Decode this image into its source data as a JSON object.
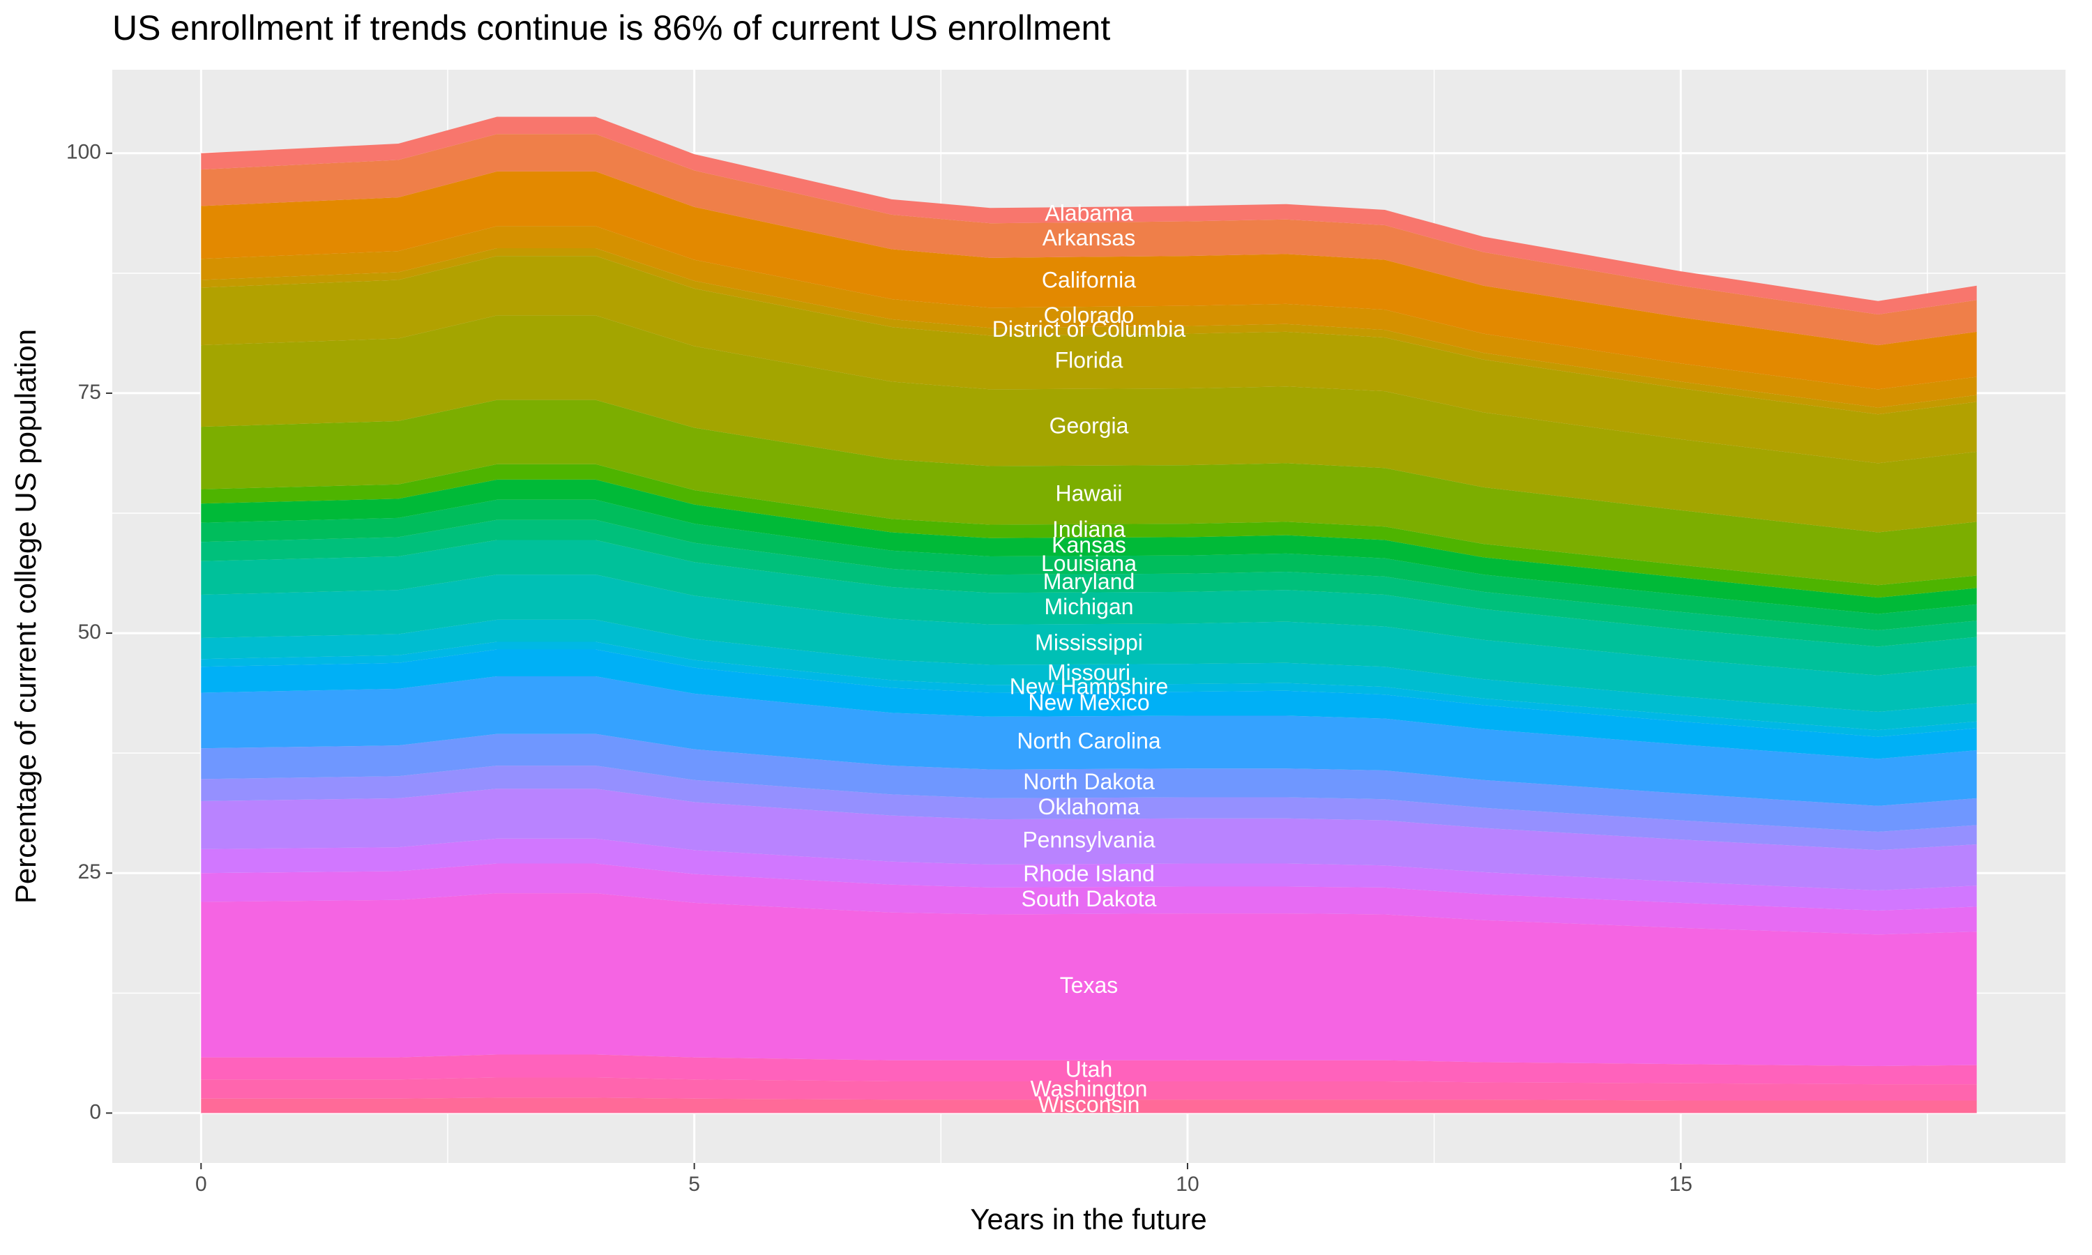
{
  "chart_data": {
    "type": "stacked_area",
    "title": "US enrollment if trends continue is 86% of current US enrollment",
    "x_label": "Years in the future",
    "y_label": "Percentage of current college US population",
    "x": [
      0,
      2,
      3,
      4,
      5,
      7,
      8,
      10,
      11,
      12,
      13,
      15,
      17,
      18
    ],
    "xlim": [
      -0.9,
      18.9
    ],
    "xticks": [
      0,
      5,
      10,
      15
    ],
    "ylim": [
      -5.2,
      108.7
    ],
    "yticks": [
      0,
      25,
      50,
      75,
      100
    ],
    "grid": true,
    "minor_grid": true,
    "series": [
      {
        "name": "Alabama",
        "color": "#F8766D",
        "values": [
          1.7,
          1.7,
          1.8,
          1.8,
          1.7,
          1.6,
          1.6,
          1.6,
          1.6,
          1.6,
          1.6,
          1.5,
          1.4,
          1.5
        ]
      },
      {
        "name": "Arkansas",
        "color": "#EF7F49",
        "values": [
          3.8,
          3.9,
          3.9,
          3.9,
          3.8,
          3.6,
          3.6,
          3.6,
          3.6,
          3.6,
          3.5,
          3.3,
          3.2,
          3.3
        ]
      },
      {
        "name": "California",
        "color": "#E38900",
        "values": [
          5.5,
          5.6,
          5.7,
          5.7,
          5.5,
          5.2,
          5.2,
          5.2,
          5.2,
          5.2,
          5.0,
          4.8,
          4.6,
          4.7
        ]
      },
      {
        "name": "Colorado",
        "color": "#D59100",
        "values": [
          2.2,
          2.2,
          2.3,
          2.3,
          2.2,
          2.1,
          2.1,
          2.1,
          2.1,
          2.1,
          2.0,
          1.9,
          1.9,
          1.9
        ]
      },
      {
        "name": "District of Columbia",
        "color": "#C49A00",
        "values": [
          0.8,
          0.8,
          0.8,
          0.8,
          0.8,
          0.8,
          0.8,
          0.8,
          0.8,
          0.8,
          0.7,
          0.7,
          0.7,
          0.7
        ]
      },
      {
        "name": "Florida",
        "color": "#B2A100",
        "values": [
          6.0,
          6.1,
          6.2,
          6.2,
          6.0,
          5.7,
          5.6,
          5.7,
          5.7,
          5.6,
          5.5,
          5.3,
          5.1,
          5.2
        ]
      },
      {
        "name": "Georgia",
        "color": "#A3A500",
        "values": [
          8.5,
          8.6,
          8.8,
          8.8,
          8.5,
          8.1,
          8.0,
          8.0,
          8.0,
          8.0,
          7.8,
          7.4,
          7.2,
          7.3
        ]
      },
      {
        "name": "Hawaii",
        "color": "#7CAE00",
        "values": [
          6.5,
          6.6,
          6.7,
          6.7,
          6.5,
          6.2,
          6.1,
          6.1,
          6.1,
          6.1,
          5.9,
          5.7,
          5.5,
          5.6
        ]
      },
      {
        "name": "Indiana",
        "color": "#4EB400",
        "values": [
          1.5,
          1.5,
          1.6,
          1.6,
          1.5,
          1.4,
          1.4,
          1.4,
          1.4,
          1.4,
          1.4,
          1.3,
          1.3,
          1.3
        ]
      },
      {
        "name": "Kansas",
        "color": "#00BA38",
        "values": [
          2.0,
          2.0,
          2.1,
          2.1,
          2.0,
          1.9,
          1.9,
          1.9,
          1.9,
          1.9,
          1.8,
          1.8,
          1.7,
          1.7
        ]
      },
      {
        "name": "Louisiana",
        "color": "#00BD5C",
        "values": [
          2.0,
          2.0,
          2.1,
          2.1,
          2.0,
          1.9,
          1.9,
          1.9,
          1.9,
          1.9,
          1.8,
          1.8,
          1.7,
          1.7
        ]
      },
      {
        "name": "Maryland",
        "color": "#00C07B",
        "values": [
          2.0,
          2.0,
          2.1,
          2.1,
          2.0,
          1.9,
          1.9,
          1.9,
          1.9,
          1.9,
          1.8,
          1.8,
          1.7,
          1.7
        ]
      },
      {
        "name": "Michigan",
        "color": "#00C19A",
        "values": [
          3.5,
          3.5,
          3.6,
          3.6,
          3.5,
          3.3,
          3.3,
          3.3,
          3.3,
          3.3,
          3.2,
          3.1,
          3.0,
          3.0
        ]
      },
      {
        "name": "Mississippi",
        "color": "#00C0B5",
        "values": [
          4.5,
          4.6,
          4.7,
          4.7,
          4.5,
          4.3,
          4.2,
          4.2,
          4.3,
          4.2,
          4.1,
          3.9,
          3.8,
          3.9
        ]
      },
      {
        "name": "Missouri",
        "color": "#00BDD0",
        "values": [
          2.2,
          2.2,
          2.3,
          2.3,
          2.2,
          2.1,
          2.1,
          2.1,
          2.1,
          2.1,
          2.0,
          1.9,
          1.9,
          1.9
        ]
      },
      {
        "name": "New Hampshire",
        "color": "#00B8E5",
        "values": [
          0.8,
          0.8,
          0.8,
          0.8,
          0.8,
          0.8,
          0.8,
          0.8,
          0.8,
          0.8,
          0.7,
          0.7,
          0.7,
          0.7
        ]
      },
      {
        "name": "New Mexico",
        "color": "#00B0F6",
        "values": [
          2.7,
          2.7,
          2.8,
          2.8,
          2.7,
          2.6,
          2.5,
          2.5,
          2.6,
          2.5,
          2.5,
          2.4,
          2.3,
          2.3
        ]
      },
      {
        "name": "North Carolina",
        "color": "#35A2FF",
        "values": [
          5.8,
          5.9,
          6.0,
          6.0,
          5.8,
          5.5,
          5.5,
          5.5,
          5.5,
          5.4,
          5.3,
          5.1,
          4.9,
          5.0
        ]
      },
      {
        "name": "North Dakota",
        "color": "#6F97FF",
        "values": [
          3.2,
          3.2,
          3.3,
          3.3,
          3.2,
          3.0,
          3.0,
          3.0,
          3.0,
          3.0,
          2.9,
          2.8,
          2.7,
          2.8
        ]
      },
      {
        "name": "Oklahoma",
        "color": "#9590FF",
        "values": [
          2.3,
          2.3,
          2.4,
          2.4,
          2.3,
          2.2,
          2.2,
          2.2,
          2.2,
          2.2,
          2.1,
          2.0,
          1.9,
          2.0
        ]
      },
      {
        "name": "Pennsylvania",
        "color": "#B983FF",
        "values": [
          5.0,
          5.1,
          5.2,
          5.2,
          5.0,
          4.8,
          4.7,
          4.7,
          4.7,
          4.7,
          4.6,
          4.4,
          4.2,
          4.3
        ]
      },
      {
        "name": "Rhode Island",
        "color": "#D177FF",
        "values": [
          2.5,
          2.5,
          2.6,
          2.6,
          2.5,
          2.4,
          2.4,
          2.4,
          2.4,
          2.3,
          2.3,
          2.2,
          2.1,
          2.2
        ]
      },
      {
        "name": "South Dakota",
        "color": "#E76BF3",
        "values": [
          3.0,
          3.0,
          3.1,
          3.1,
          3.0,
          2.9,
          2.8,
          2.8,
          2.8,
          2.8,
          2.7,
          2.6,
          2.5,
          2.6
        ]
      },
      {
        "name": "Texas",
        "color": "#F564E3",
        "values": [
          16.2,
          16.4,
          16.8,
          16.8,
          16.1,
          15.4,
          15.2,
          15.3,
          15.3,
          15.2,
          14.8,
          14.2,
          13.7,
          13.9
        ]
      },
      {
        "name": "Utah",
        "color": "#FF62BC",
        "values": [
          2.3,
          2.3,
          2.4,
          2.4,
          2.3,
          2.2,
          2.2,
          2.2,
          2.2,
          2.2,
          2.1,
          2.0,
          1.9,
          2.0
        ]
      },
      {
        "name": "Washington",
        "color": "#FF65AE",
        "values": [
          2.0,
          2.0,
          2.1,
          2.1,
          2.0,
          1.9,
          1.9,
          1.9,
          1.9,
          1.9,
          1.8,
          1.8,
          1.7,
          1.7
        ]
      },
      {
        "name": "Wisconsin",
        "color": "#FF6A98",
        "values": [
          1.5,
          1.5,
          1.6,
          1.6,
          1.5,
          1.4,
          1.4,
          1.4,
          1.4,
          1.4,
          1.4,
          1.3,
          1.3,
          1.3
        ]
      }
    ]
  }
}
